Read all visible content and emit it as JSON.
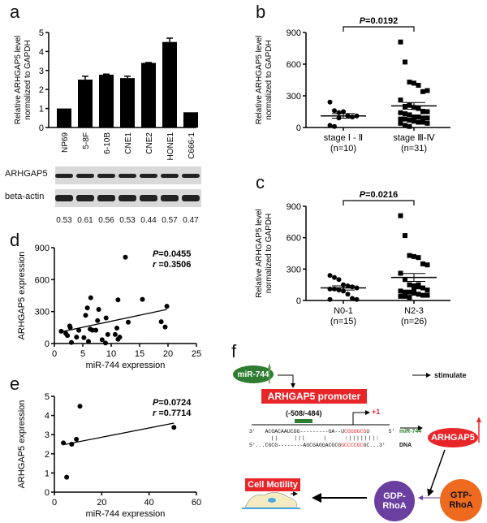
{
  "panel_labels": [
    "a",
    "b",
    "c",
    "d",
    "e",
    "f"
  ],
  "chart_data": [
    {
      "panel": "a",
      "type": "bar",
      "categories": [
        "NP69",
        "5-8F",
        "6-10B",
        "CNE1",
        "CNE2",
        "HONE1",
        "C666-1"
      ],
      "values": [
        1.0,
        2.52,
        2.78,
        2.6,
        3.4,
        4.5,
        0.8
      ],
      "errors": [
        0,
        0.18,
        0.03,
        0.1,
        0.02,
        0.2,
        0
      ],
      "ylabel": "Relative ARHGAP5 level normalized to GAPDH",
      "ylim": [
        0,
        5
      ],
      "yticks": [
        "0",
        "1",
        "2",
        "3",
        "4",
        "5"
      ],
      "color": "#000000"
    },
    {
      "panel": "b",
      "type": "scatter",
      "categories": [
        "stage Ⅰ-Ⅱ (n=10)",
        "stage Ⅲ-Ⅳ (n=31)"
      ],
      "cat_lines": [
        [
          "stage Ⅰ - Ⅱ",
          "(n=10)"
        ],
        [
          "stage Ⅲ-Ⅳ",
          "(n=31)"
        ]
      ],
      "groups": [
        [
          240,
          160,
          140,
          150,
          110,
          100,
          110,
          20,
          10,
          90
        ],
        [
          810,
          620,
          430,
          420,
          400,
          340,
          350,
          260,
          200,
          210,
          190,
          180,
          150,
          150,
          140,
          130,
          120,
          100,
          100,
          90,
          90,
          80,
          80,
          70,
          60,
          50,
          50,
          40,
          40,
          20,
          10
        ]
      ],
      "means": [
        110,
        205
      ],
      "sem": [
        22,
        32
      ],
      "markers": [
        "circle",
        "square"
      ],
      "ylabel": "Relative ARHGAP5 level normalized to GAPDH",
      "ylim": [
        0,
        900
      ],
      "yticks": [
        "0",
        "300",
        "600",
        "900"
      ],
      "annotation": {
        "p_label": "P",
        "p_value": "=0.0192"
      }
    },
    {
      "panel": "c",
      "type": "scatter",
      "categories": [
        "N0-1 (n=15)",
        "N2-3 (n=26)"
      ],
      "cat_lines": [
        [
          "N0-1",
          "(n=15)"
        ],
        [
          "N2-3",
          "(n=26)"
        ]
      ],
      "groups": [
        [
          240,
          220,
          200,
          150,
          140,
          130,
          120,
          110,
          110,
          100,
          90,
          60,
          20,
          10,
          10
        ],
        [
          810,
          620,
          430,
          420,
          410,
          350,
          340,
          260,
          200,
          150,
          140,
          130,
          120,
          100,
          90,
          80,
          80,
          70,
          60,
          50,
          50,
          40,
          40,
          30,
          100,
          150
        ]
      ],
      "means": [
        120,
        220
      ],
      "sem": [
        20,
        38
      ],
      "markers": [
        "circle",
        "square"
      ],
      "ylabel": "Relative ARHGAP5 level normalized to GAPDH",
      "ylim": [
        0,
        900
      ],
      "yticks": [
        "0",
        "300",
        "600",
        "900"
      ],
      "annotation": {
        "p_label": "P",
        "p_value": "=0.0216"
      }
    },
    {
      "panel": "d",
      "type": "scatter",
      "xlabel": "miR-744 expression",
      "ylabel": "ARHGAP5 expression",
      "xlim": [
        0,
        25
      ],
      "ylim": [
        0,
        900
      ],
      "xticks": [
        "0",
        "5",
        "10",
        "15",
        "20",
        "25"
      ],
      "yticks": [
        "0",
        "300",
        "600",
        "900"
      ],
      "points": [
        [
          1.2,
          115
        ],
        [
          2,
          95
        ],
        [
          2.3,
          75
        ],
        [
          2.7,
          165
        ],
        [
          2.8,
          150
        ],
        [
          3,
          10
        ],
        [
          3.9,
          60
        ],
        [
          4.3,
          125
        ],
        [
          5.2,
          55
        ],
        [
          5.5,
          265
        ],
        [
          5.8,
          335
        ],
        [
          6,
          20
        ],
        [
          6.3,
          135
        ],
        [
          6.4,
          430
        ],
        [
          6.7,
          125
        ],
        [
          7.3,
          125
        ],
        [
          7.6,
          215
        ],
        [
          7.8,
          320
        ],
        [
          8.4,
          35
        ],
        [
          9,
          5
        ],
        [
          9.1,
          240
        ],
        [
          9.4,
          85
        ],
        [
          10.7,
          85
        ],
        [
          11,
          145
        ],
        [
          11.2,
          410
        ],
        [
          11.2,
          40
        ],
        [
          11.5,
          60
        ],
        [
          12.5,
          810
        ],
        [
          13,
          200
        ],
        [
          15.5,
          415
        ],
        [
          18.8,
          205
        ],
        [
          19.5,
          155
        ],
        [
          19.8,
          350
        ]
      ],
      "fit": [
        [
          1.2,
          110
        ],
        [
          19.8,
          320
        ]
      ],
      "annotation": {
        "p_label": "P",
        "p_value": "=0.0455",
        "r_label": "r",
        "r_value": "=0.3506"
      }
    },
    {
      "panel": "e",
      "type": "scatter",
      "xlabel": "miR-744 expression",
      "ylabel": "ARHGAP5 expression",
      "xlim": [
        0,
        60
      ],
      "ylim": [
        0,
        5
      ],
      "xticks": [
        "0",
        "20",
        "40",
        "60"
      ],
      "yticks": [
        "0",
        "1",
        "2",
        "3",
        "4",
        "5"
      ],
      "points": [
        [
          3.8,
          2.57
        ],
        [
          5.2,
          0.78
        ],
        [
          7.3,
          2.5
        ],
        [
          9.3,
          2.76
        ],
        [
          10.8,
          4.48
        ],
        [
          50.5,
          3.38
        ]
      ],
      "fit": [
        [
          4,
          2.48
        ],
        [
          50.5,
          3.6
        ]
      ],
      "annotation": {
        "p_label": "P",
        "p_value": "=0.0724",
        "r_label": "r",
        "r_value": "=0.7714"
      }
    }
  ],
  "blot": {
    "rows": [
      "ARHGAP5",
      "beta-actin"
    ],
    "ratios": [
      "0.53",
      "0.61",
      "0.56",
      "0.53",
      "0.44",
      "0.57",
      "0.47"
    ]
  },
  "diagram": {
    "mir": "miR-744",
    "promoter": "ARHGAP5 promoter",
    "legend": "stimulate",
    "region": "(-508/-484)",
    "tss": "+1",
    "seq_mir_a": "3'   ACGACAAUCGG---------GA--U",
    "seq_mir_b": "CGGGGCG",
    "seq_mir_c": "U      5'",
    "pairs": "           | |         | | |          |          : | | | | | | | :",
    "seq_dna_a": "5'...CGCG--------AGCGAGGACGCG",
    "seq_dna_b": "GCCCCGC",
    "seq_dna_c": "GC...3'",
    "mir_tag": "miR-744",
    "dna_tag": "DNA",
    "arhgap5": "ARHGAP5",
    "gdp": "GDP-\nRhoA",
    "gtp": "GTP-\nRhoA",
    "motility": "Cell Motility",
    "colors": {
      "green": "#2e7d32",
      "red": "#e8262a",
      "purple": "#6a3fa0",
      "orange": "#ee6a1f"
    }
  }
}
